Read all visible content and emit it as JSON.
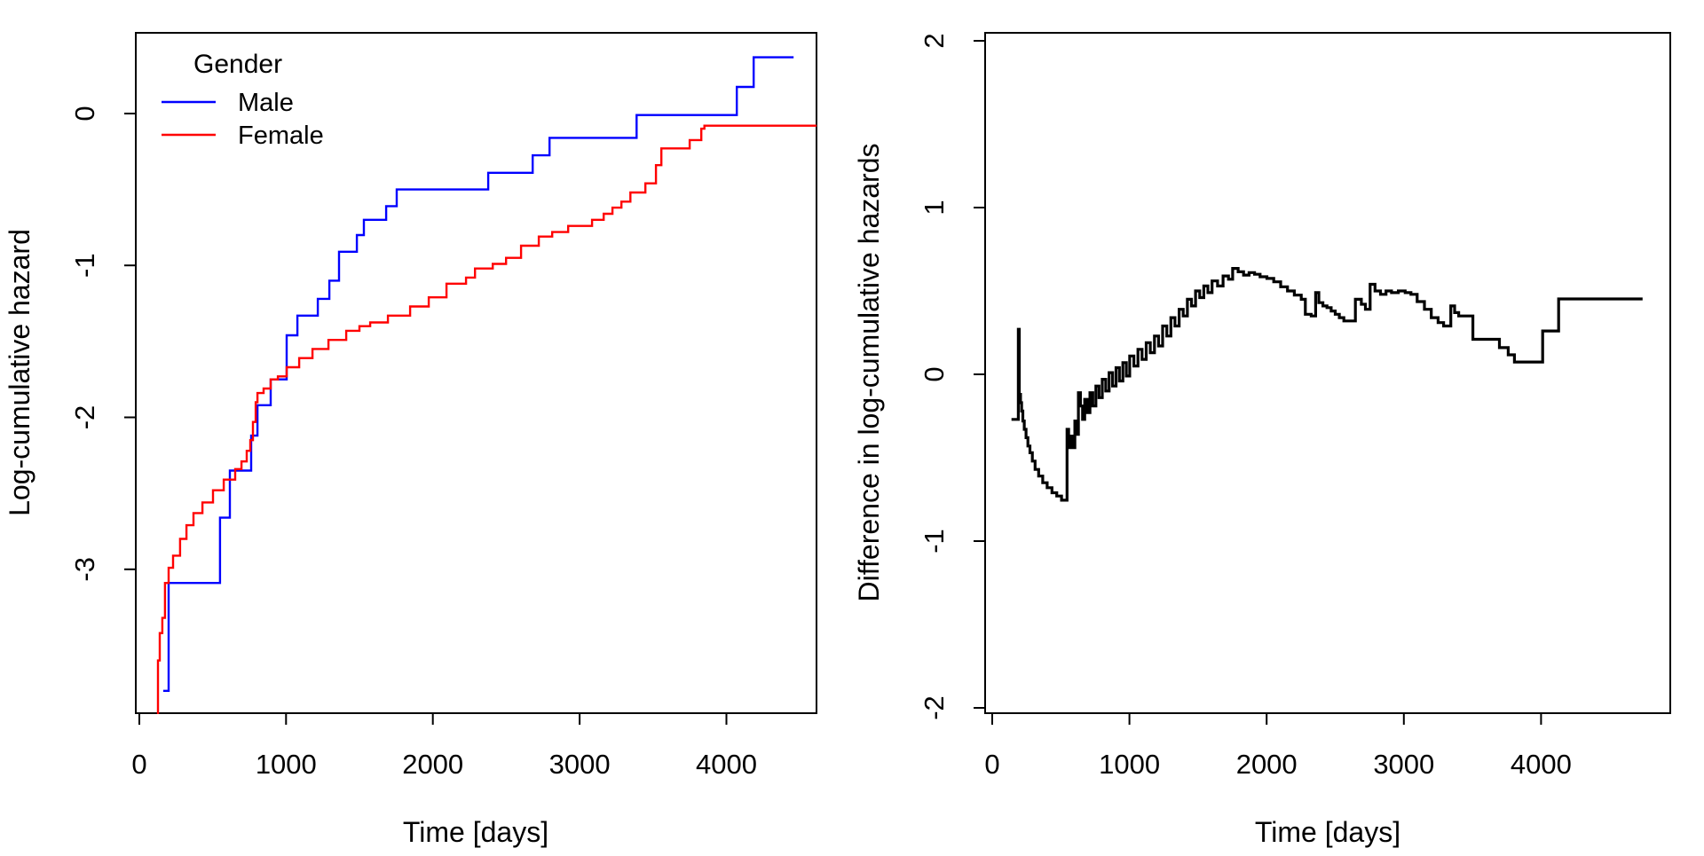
{
  "figure_background": "#FFFFFF",
  "chart_data": [
    {
      "type": "line",
      "subtype": "step-after",
      "panel": "left",
      "xlabel": "Time [days]",
      "ylabel": "Log-cumulative hazard",
      "xlim": [
        -24,
        4614
      ],
      "ylim": [
        -3.947,
        0.531
      ],
      "x_ticks": [
        0,
        1000,
        2000,
        3000,
        4000
      ],
      "x_tick_labels": [
        "0",
        "1000",
        "2000",
        "3000",
        "4000"
      ],
      "y_ticks": [
        0,
        -1,
        -2,
        -3
      ],
      "y_tick_labels": [
        "0",
        "-1",
        "-2",
        "-3"
      ],
      "grid": false,
      "legend": {
        "title": "Gender",
        "position": "top-left"
      },
      "series": [
        {
          "name": "Male",
          "color": "#0000FF",
          "width": 2.4,
          "points": [
            [
              163,
              -3.8
            ],
            [
              200,
              -3.09
            ],
            [
              550,
              -2.66
            ],
            [
              617,
              -2.35
            ],
            [
              762,
              -2.12
            ],
            [
              805,
              -1.92
            ],
            [
              895,
              -1.75
            ],
            [
              1004,
              -1.46
            ],
            [
              1077,
              -1.33
            ],
            [
              1216,
              -1.22
            ],
            [
              1295,
              -1.1
            ],
            [
              1361,
              -0.91
            ],
            [
              1482,
              -0.8
            ],
            [
              1530,
              -0.7
            ],
            [
              1682,
              -0.61
            ],
            [
              1754,
              -0.5
            ],
            [
              2377,
              -0.39
            ],
            [
              2680,
              -0.275
            ],
            [
              2795,
              -0.16
            ],
            [
              3388,
              -0.01
            ],
            [
              4071,
              0.175
            ],
            [
              4186,
              0.37
            ],
            [
              4458,
              0.37
            ]
          ]
        },
        {
          "name": "Female",
          "color": "#FF0000",
          "width": 2.4,
          "points": [
            [
              121,
              -3.95
            ],
            [
              127,
              -3.6
            ],
            [
              139,
              -3.42
            ],
            [
              157,
              -3.32
            ],
            [
              175,
              -3.09
            ],
            [
              200,
              -2.99
            ],
            [
              230,
              -2.91
            ],
            [
              278,
              -2.8
            ],
            [
              321,
              -2.71
            ],
            [
              369,
              -2.63
            ],
            [
              430,
              -2.56
            ],
            [
              502,
              -2.48
            ],
            [
              575,
              -2.41
            ],
            [
              653,
              -2.34
            ],
            [
              696,
              -2.29
            ],
            [
              732,
              -2.22
            ],
            [
              756,
              -2.15
            ],
            [
              774,
              -2.03
            ],
            [
              793,
              -1.9
            ],
            [
              805,
              -1.84
            ],
            [
              847,
              -1.81
            ],
            [
              895,
              -1.75
            ],
            [
              944,
              -1.73
            ],
            [
              1004,
              -1.67
            ],
            [
              1089,
              -1.61
            ],
            [
              1180,
              -1.55
            ],
            [
              1289,
              -1.49
            ],
            [
              1410,
              -1.43
            ],
            [
              1500,
              -1.4
            ],
            [
              1573,
              -1.375
            ],
            [
              1694,
              -1.33
            ],
            [
              1845,
              -1.27
            ],
            [
              1972,
              -1.21
            ],
            [
              2093,
              -1.12
            ],
            [
              2226,
              -1.08
            ],
            [
              2287,
              -1.02
            ],
            [
              2408,
              -0.99
            ],
            [
              2499,
              -0.95
            ],
            [
              2601,
              -0.87
            ],
            [
              2722,
              -0.81
            ],
            [
              2813,
              -0.78
            ],
            [
              2922,
              -0.74
            ],
            [
              3085,
              -0.7
            ],
            [
              3164,
              -0.66
            ],
            [
              3224,
              -0.62
            ],
            [
              3285,
              -0.58
            ],
            [
              3346,
              -0.52
            ],
            [
              3448,
              -0.46
            ],
            [
              3520,
              -0.34
            ],
            [
              3557,
              -0.23
            ],
            [
              3750,
              -0.175
            ],
            [
              3829,
              -0.1
            ],
            [
              3850,
              -0.08
            ],
            [
              4615,
              -0.08
            ]
          ]
        }
      ]
    },
    {
      "type": "line",
      "subtype": "step-after",
      "panel": "right",
      "xlabel": "Time [days]",
      "ylabel": "Difference in log-cumulative hazards",
      "xlim": [
        -52,
        4942
      ],
      "ylim": [
        -2.032,
        2.048
      ],
      "x_ticks": [
        0,
        1000,
        2000,
        3000,
        4000
      ],
      "x_tick_labels": [
        "0",
        "1000",
        "2000",
        "3000",
        "4000"
      ],
      "y_ticks": [
        2,
        1,
        0,
        -1,
        -2
      ],
      "y_tick_labels": [
        "2",
        "1",
        "0",
        "-1",
        "-2"
      ],
      "grid": false,
      "legend": null,
      "series": [
        {
          "name": "Difference",
          "color": "#000000",
          "width": 3.2,
          "points": [
            [
              140,
              -0.27
            ],
            [
              190,
              0.27
            ],
            [
              197,
              -0.12
            ],
            [
              206,
              -0.17
            ],
            [
              214,
              -0.22
            ],
            [
              223,
              -0.28
            ],
            [
              233,
              -0.33
            ],
            [
              246,
              -0.38
            ],
            [
              260,
              -0.43
            ],
            [
              275,
              -0.47
            ],
            [
              292,
              -0.52
            ],
            [
              312,
              -0.57
            ],
            [
              338,
              -0.61
            ],
            [
              368,
              -0.65
            ],
            [
              400,
              -0.68
            ],
            [
              435,
              -0.71
            ],
            [
              470,
              -0.73
            ],
            [
              505,
              -0.755
            ],
            [
              545,
              -0.33
            ],
            [
              557,
              -0.44
            ],
            [
              572,
              -0.37
            ],
            [
              586,
              -0.44
            ],
            [
              602,
              -0.28
            ],
            [
              617,
              -0.36
            ],
            [
              628,
              -0.11
            ],
            [
              643,
              -0.19
            ],
            [
              658,
              -0.27
            ],
            [
              674,
              -0.15
            ],
            [
              692,
              -0.23
            ],
            [
              712,
              -0.11
            ],
            [
              733,
              -0.19
            ],
            [
              755,
              -0.07
            ],
            [
              778,
              -0.14
            ],
            [
              802,
              -0.03
            ],
            [
              827,
              -0.1
            ],
            [
              852,
              0.01
            ],
            [
              877,
              -0.07
            ],
            [
              902,
              0.04
            ],
            [
              927,
              -0.04
            ],
            [
              952,
              0.07
            ],
            [
              977,
              -0.01
            ],
            [
              1002,
              0.11
            ],
            [
              1032,
              0.05
            ],
            [
              1062,
              0.15
            ],
            [
              1092,
              0.09
            ],
            [
              1122,
              0.19
            ],
            [
              1152,
              0.13
            ],
            [
              1182,
              0.23
            ],
            [
              1212,
              0.17
            ],
            [
              1242,
              0.29
            ],
            [
              1272,
              0.23
            ],
            [
              1302,
              0.34
            ],
            [
              1332,
              0.29
            ],
            [
              1362,
              0.39
            ],
            [
              1392,
              0.35
            ],
            [
              1422,
              0.45
            ],
            [
              1452,
              0.41
            ],
            [
              1482,
              0.5
            ],
            [
              1512,
              0.46
            ],
            [
              1542,
              0.53
            ],
            [
              1572,
              0.49
            ],
            [
              1602,
              0.56
            ],
            [
              1642,
              0.53
            ],
            [
              1682,
              0.59
            ],
            [
              1722,
              0.57
            ],
            [
              1752,
              0.635
            ],
            [
              1792,
              0.615
            ],
            [
              1832,
              0.595
            ],
            [
              1872,
              0.61
            ],
            [
              1912,
              0.6
            ],
            [
              1952,
              0.585
            ],
            [
              2002,
              0.575
            ],
            [
              2052,
              0.555
            ],
            [
              2102,
              0.525
            ],
            [
              2152,
              0.5
            ],
            [
              2202,
              0.475
            ],
            [
              2252,
              0.45
            ],
            [
              2282,
              0.36
            ],
            [
              2325,
              0.35
            ],
            [
              2357,
              0.49
            ],
            [
              2380,
              0.43
            ],
            [
              2410,
              0.41
            ],
            [
              2440,
              0.4
            ],
            [
              2470,
              0.38
            ],
            [
              2500,
              0.36
            ],
            [
              2530,
              0.34
            ],
            [
              2563,
              0.32
            ],
            [
              2647,
              0.45
            ],
            [
              2690,
              0.42
            ],
            [
              2720,
              0.39
            ],
            [
              2754,
              0.54
            ],
            [
              2790,
              0.5
            ],
            [
              2830,
              0.48
            ],
            [
              2870,
              0.5
            ],
            [
              2910,
              0.49
            ],
            [
              2960,
              0.5
            ],
            [
              3010,
              0.49
            ],
            [
              3052,
              0.48
            ],
            [
              3097,
              0.436
            ],
            [
              3150,
              0.39
            ],
            [
              3200,
              0.34
            ],
            [
              3250,
              0.31
            ],
            [
              3290,
              0.29
            ],
            [
              3342,
              0.41
            ],
            [
              3370,
              0.37
            ],
            [
              3400,
              0.35
            ],
            [
              3503,
              0.21
            ],
            [
              3697,
              0.16
            ],
            [
              3761,
              0.117
            ],
            [
              3806,
              0.074
            ],
            [
              4012,
              0.26
            ],
            [
              4128,
              0.452
            ],
            [
              4740,
              0.452
            ]
          ]
        }
      ]
    }
  ]
}
